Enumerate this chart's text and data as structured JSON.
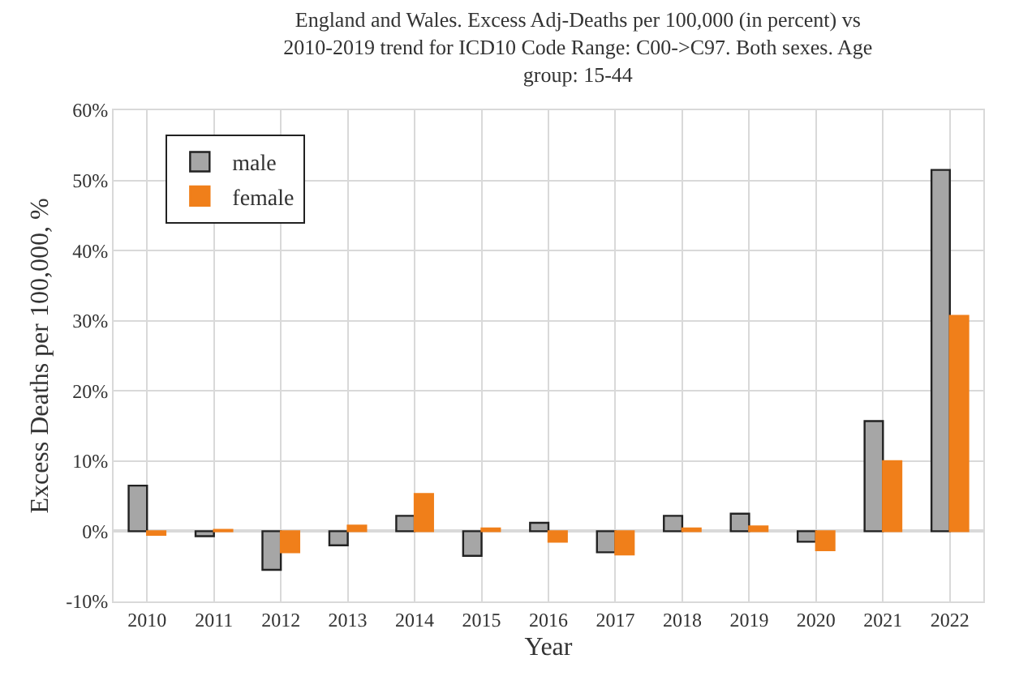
{
  "chart_data": {
    "type": "bar",
    "title": "England and Wales. Excess Adj-Deaths per 100,000 (in percent) vs\n2010-2019 trend for ICD10 Code Range: C00->C97. Both sexes. Age\ngroup: 15-44",
    "xlabel": "Year",
    "ylabel": "Excess Deaths per 100,000, %",
    "categories": [
      "2010",
      "2011",
      "2012",
      "2013",
      "2014",
      "2015",
      "2016",
      "2017",
      "2018",
      "2019",
      "2020",
      "2021",
      "2022"
    ],
    "series": [
      {
        "name": "male",
        "color": "#a6a6a6",
        "values": [
          6.5,
          -0.7,
          -5.5,
          -2,
          2.2,
          -3.5,
          1.2,
          -3,
          2.2,
          2.5,
          -1.5,
          15.7,
          51.5
        ]
      },
      {
        "name": "female",
        "color": "#f07f1a",
        "values": [
          -0.5,
          0.2,
          -3,
          0.8,
          5.3,
          0.4,
          -1.5,
          -3.3,
          0.4,
          0.7,
          -2.7,
          10,
          30.7
        ]
      }
    ],
    "ylim": [
      -10,
      60
    ],
    "yticks": [
      {
        "value": -10,
        "label": "-10%"
      },
      {
        "value": 0,
        "label": "0%"
      },
      {
        "value": 10,
        "label": "10%"
      },
      {
        "value": 20,
        "label": "20%"
      },
      {
        "value": 30,
        "label": "30%"
      },
      {
        "value": 40,
        "label": "40%"
      },
      {
        "value": 50,
        "label": "50%"
      },
      {
        "value": 60,
        "label": "60%"
      }
    ],
    "grid": true,
    "legend": "top left"
  }
}
